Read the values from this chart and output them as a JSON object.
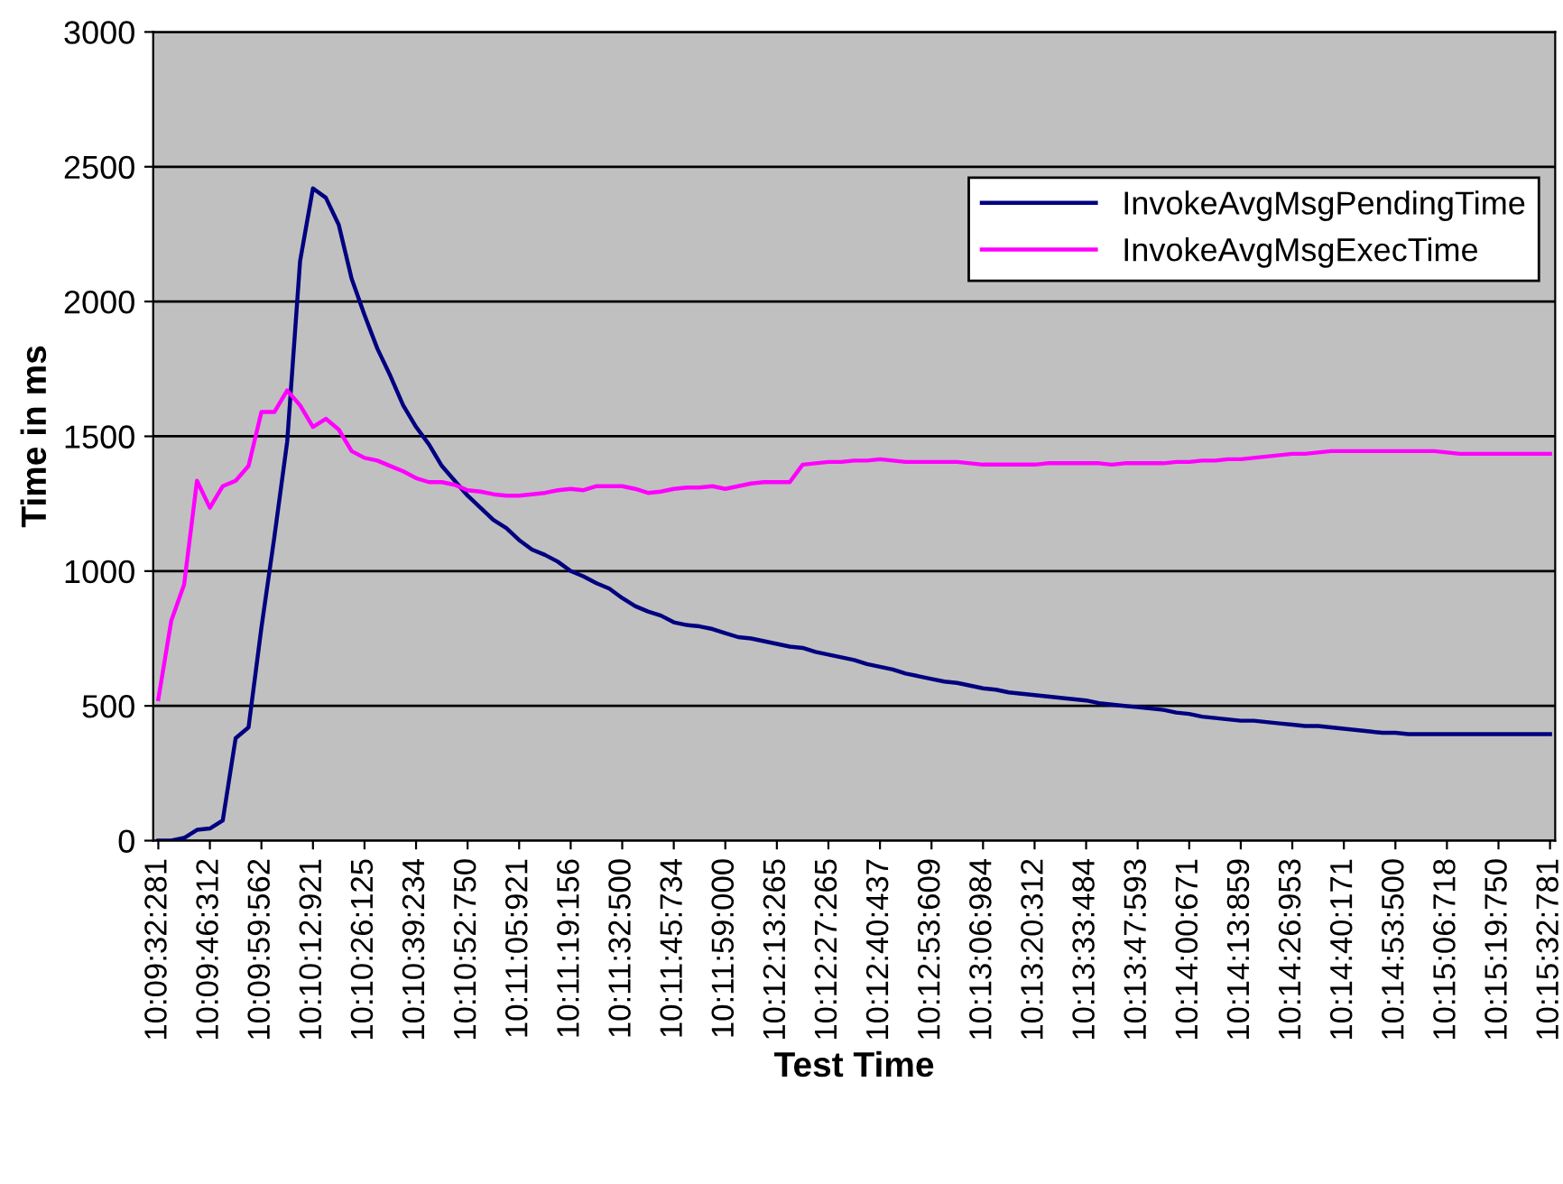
{
  "chart_data": {
    "type": "line",
    "xlabel": "Test Time",
    "ylabel": "Time in ms",
    "categories": [
      "10:09:32:281",
      null,
      null,
      null,
      "10:09:46:312",
      null,
      null,
      null,
      "10:09:59:562",
      null,
      null,
      null,
      "10:10:12:921",
      null,
      null,
      null,
      "10:10:26:125",
      null,
      null,
      null,
      "10:10:39:234",
      null,
      null,
      null,
      "10:10:52:750",
      null,
      null,
      null,
      "10:11:05:921",
      null,
      null,
      null,
      "10:11:19:156",
      null,
      null,
      null,
      "10:11:32:500",
      null,
      null,
      null,
      "10:11:45:734",
      null,
      null,
      null,
      "10:11:59:000",
      null,
      null,
      null,
      "10:12:13:265",
      null,
      null,
      null,
      "10:12:27:265",
      null,
      null,
      null,
      "10:12:40:437",
      null,
      null,
      null,
      "10:12:53:609",
      null,
      null,
      null,
      "10:13:06:984",
      null,
      null,
      null,
      "10:13:20:312",
      null,
      null,
      null,
      "10:13:33:484",
      null,
      null,
      null,
      "10:13:47:593",
      null,
      null,
      null,
      "10:14:00:671",
      null,
      null,
      null,
      "10:14:13:859",
      null,
      null,
      null,
      "10:14:26:953",
      null,
      null,
      null,
      "10:14:40:171",
      null,
      null,
      null,
      "10:14:53:500",
      null,
      null,
      null,
      "10:15:06:718",
      null,
      null,
      null,
      "10:15:19:750",
      null,
      null,
      null,
      "10:15:32:781"
    ],
    "series": [
      {
        "name": "InvokeAvgMsgPendingTime",
        "color": "#000080",
        "values": [
          0,
          0,
          10,
          40,
          45,
          75,
          380,
          420,
          790,
          1125,
          1480,
          2150,
          2420,
          2385,
          2285,
          2085,
          1950,
          1825,
          1725,
          1615,
          1535,
          1470,
          1390,
          1335,
          1280,
          1235,
          1190,
          1160,
          1115,
          1080,
          1060,
          1035,
          1000,
          980,
          955,
          935,
          900,
          870,
          850,
          835,
          810,
          800,
          795,
          785,
          770,
          755,
          750,
          740,
          730,
          720,
          715,
          700,
          690,
          680,
          670,
          655,
          645,
          635,
          620,
          610,
          600,
          590,
          585,
          575,
          565,
          560,
          550,
          545,
          540,
          535,
          530,
          525,
          520,
          510,
          505,
          500,
          495,
          490,
          485,
          475,
          470,
          460,
          455,
          450,
          445,
          445,
          440,
          435,
          430,
          425,
          425,
          420,
          415,
          410,
          405,
          400,
          400,
          395,
          395,
          395,
          395,
          395,
          395,
          395,
          395,
          395,
          395,
          395,
          395
        ]
      },
      {
        "name": "InvokeAvgMsgExecTime",
        "color": "#ff00ff",
        "values": [
          525,
          815,
          950,
          1335,
          1235,
          1315,
          1335,
          1390,
          1590,
          1590,
          1670,
          1615,
          1535,
          1565,
          1525,
          1445,
          1420,
          1410,
          1390,
          1370,
          1345,
          1330,
          1330,
          1320,
          1300,
          1295,
          1285,
          1280,
          1280,
          1285,
          1290,
          1300,
          1305,
          1300,
          1315,
          1315,
          1315,
          1305,
          1290,
          1295,
          1305,
          1310,
          1310,
          1315,
          1305,
          1315,
          1325,
          1330,
          1330,
          1330,
          1395,
          1400,
          1405,
          1405,
          1410,
          1410,
          1415,
          1410,
          1405,
          1405,
          1405,
          1405,
          1405,
          1400,
          1395,
          1395,
          1395,
          1395,
          1395,
          1400,
          1400,
          1400,
          1400,
          1400,
          1395,
          1400,
          1400,
          1400,
          1400,
          1405,
          1405,
          1410,
          1410,
          1415,
          1415,
          1420,
          1425,
          1430,
          1435,
          1435,
          1440,
          1445,
          1445,
          1445,
          1445,
          1445,
          1445,
          1445,
          1445,
          1445,
          1440,
          1435,
          1435,
          1435,
          1435,
          1435,
          1435,
          1435,
          1435
        ]
      }
    ],
    "ylim": [
      0,
      3000
    ],
    "yticks": [
      0,
      500,
      1000,
      1500,
      2000,
      2500,
      3000
    ],
    "grid": "y",
    "legend": "top right",
    "marker": "none",
    "line_style": "solid"
  }
}
